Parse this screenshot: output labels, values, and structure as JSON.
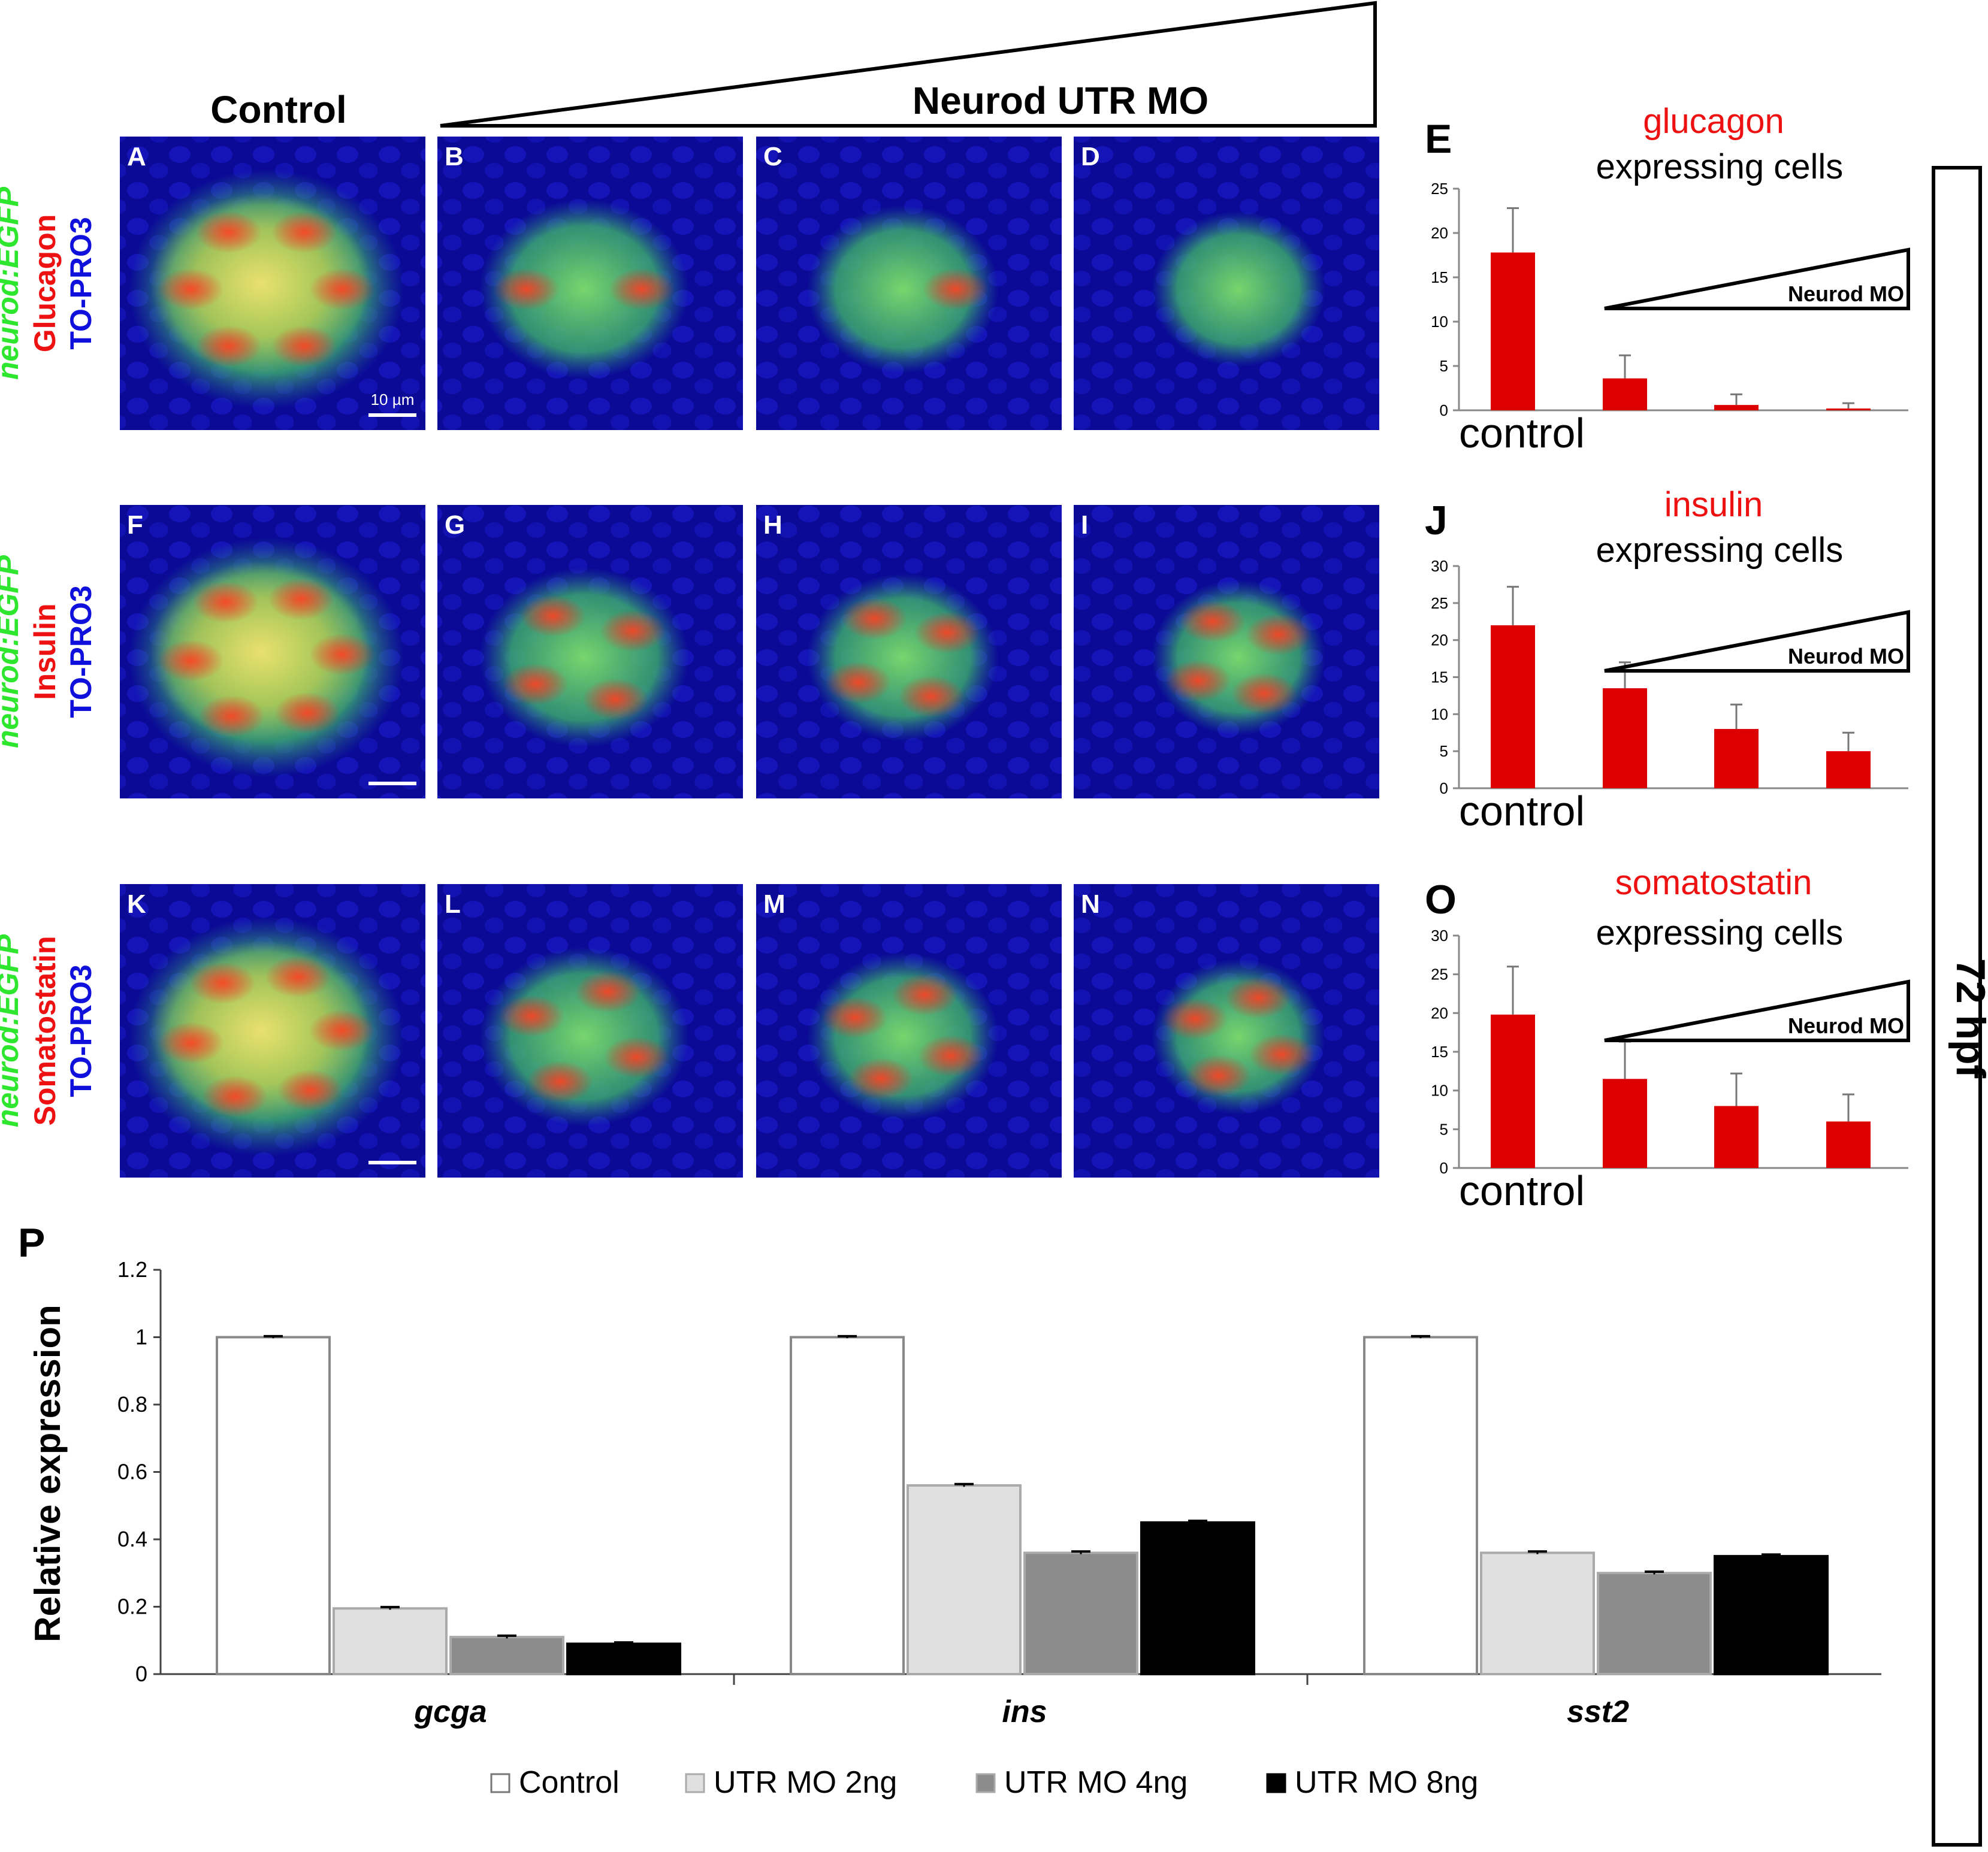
{
  "header": {
    "control_label": "Control",
    "treatment_label": "Neurod UTR  MO",
    "timepoint": "72 hpf"
  },
  "rows": [
    {
      "side": {
        "reporter": "neurod:EGFP",
        "marker": "Glucagon",
        "stain": "TO-PRO3"
      },
      "panels": [
        "A",
        "B",
        "C",
        "D"
      ],
      "scale_bar": "10 µm"
    },
    {
      "side": {
        "reporter": "neurod:EGFP",
        "marker": "Insulin",
        "stain": "TO-PRO3"
      },
      "panels": [
        "F",
        "G",
        "H",
        "I"
      ],
      "scale_bar": ""
    },
    {
      "side": {
        "reporter": "neurod:EGFP",
        "marker": "Somatostatin",
        "stain": "TO-PRO3"
      },
      "panels": [
        "K",
        "L",
        "M",
        "N"
      ],
      "scale_bar": ""
    }
  ],
  "colors": {
    "reporter": "#2ee62e",
    "marker": "#ee1111",
    "stain": "#1010dd",
    "bar_red": "#dd0000",
    "micro_bg": "#0a0a96"
  },
  "icons": [
    "dose-wedge-icon"
  ],
  "chart_data": [
    {
      "panel": "E",
      "type": "bar",
      "title": "glucagon",
      "subtitle": "expressing cells",
      "categories": [
        "control",
        "",
        "",
        ""
      ],
      "values": [
        17.8,
        3.6,
        0.6,
        0.2
      ],
      "errors": [
        5.0,
        2.6,
        1.2,
        0.6
      ],
      "ylim": [
        0,
        25
      ],
      "yticks": [
        0,
        5,
        10,
        15,
        20,
        25
      ],
      "wedge_label": "Neurod MO"
    },
    {
      "panel": "J",
      "type": "bar",
      "title": "insulin",
      "subtitle": "expressing cells",
      "categories": [
        "control",
        "",
        "",
        ""
      ],
      "values": [
        22,
        13.5,
        8,
        5
      ],
      "errors": [
        5.2,
        3.5,
        3.3,
        2.5
      ],
      "ylim": [
        0,
        30
      ],
      "yticks": [
        0,
        5,
        10,
        15,
        20,
        25,
        30
      ],
      "wedge_label": "Neurod MO"
    },
    {
      "panel": "O",
      "type": "bar",
      "title": "somatostatin",
      "subtitle": "expressing cells",
      "categories": [
        "control",
        "",
        "",
        ""
      ],
      "values": [
        19.8,
        11.5,
        8,
        6
      ],
      "errors": [
        6.2,
        4.8,
        4.2,
        3.5
      ],
      "ylim": [
        0,
        30
      ],
      "yticks": [
        0,
        5,
        10,
        15,
        20,
        25,
        30
      ],
      "wedge_label": "Neurod MO"
    },
    {
      "panel": "P",
      "type": "bar",
      "ylabel": "Relative expression",
      "categories": [
        "gcga",
        "ins",
        "sst2"
      ],
      "ylim": [
        0,
        1.2
      ],
      "yticks": [
        "0",
        "0.2",
        "0.4",
        "0.6",
        "0.8",
        "1",
        "1.2"
      ],
      "legend_position": "bottom",
      "series": [
        {
          "name": "Control",
          "values": [
            1,
            1,
            1
          ],
          "errors": [
            0.003,
            0.003,
            0.003
          ],
          "color": "#ffffff"
        },
        {
          "name": "UTR MO 2ng",
          "values": [
            0.195,
            0.56,
            0.36
          ],
          "errors": [
            0.004,
            0.004,
            0.004
          ],
          "color": "#e0e0e0"
        },
        {
          "name": "UTR MO 4ng",
          "values": [
            0.11,
            0.36,
            0.3
          ],
          "errors": [
            0.004,
            0.004,
            0.004
          ],
          "color": "#8c8c8c"
        },
        {
          "name": "UTR MO 8ng",
          "values": [
            0.09,
            0.45,
            0.35
          ],
          "errors": [
            0.004,
            0.005,
            0.005
          ],
          "color": "#000000"
        }
      ]
    }
  ]
}
